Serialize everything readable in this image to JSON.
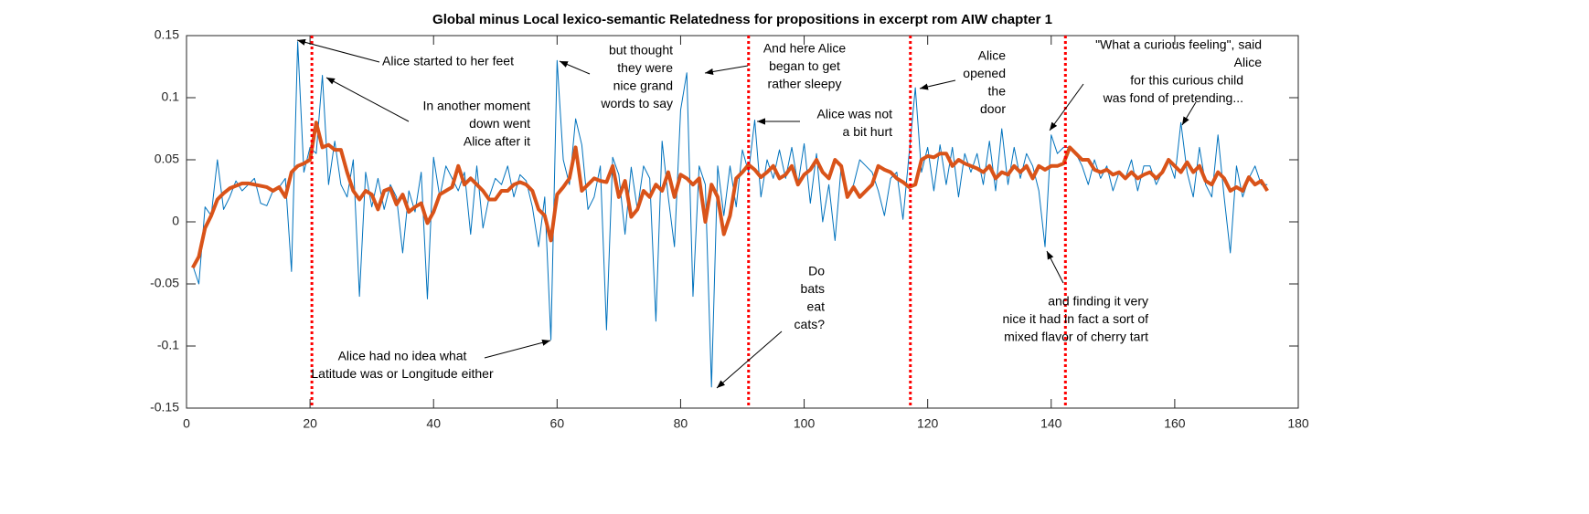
{
  "chart_data": {
    "type": "line",
    "title": "Global minus Local lexico-semantic Relatedness for propositions in excerpt rom AIW chapter 1",
    "x": [
      1,
      2,
      3,
      4,
      5,
      6,
      7,
      8,
      9,
      10,
      11,
      12,
      13,
      14,
      15,
      16,
      17,
      18,
      19,
      20,
      21,
      22,
      23,
      24,
      25,
      26,
      27,
      28,
      29,
      30,
      31,
      32,
      33,
      34,
      35,
      36,
      37,
      38,
      39,
      40,
      41,
      42,
      43,
      44,
      45,
      46,
      47,
      48,
      49,
      50,
      51,
      52,
      53,
      54,
      55,
      56,
      57,
      58,
      59,
      60,
      61,
      62,
      63,
      64,
      65,
      66,
      67,
      68,
      69,
      70,
      71,
      72,
      73,
      74,
      75,
      76,
      77,
      78,
      79,
      80,
      81,
      82,
      83,
      84,
      85,
      86,
      87,
      88,
      89,
      90,
      91,
      92,
      93,
      94,
      95,
      96,
      97,
      98,
      99,
      100,
      101,
      102,
      103,
      104,
      105,
      106,
      107,
      108,
      109,
      110,
      111,
      112,
      113,
      114,
      115,
      116,
      117,
      118,
      119,
      120,
      121,
      122,
      123,
      124,
      125,
      126,
      127,
      128,
      129,
      130,
      131,
      132,
      133,
      134,
      135,
      136,
      137,
      138,
      139,
      140,
      141,
      142,
      143,
      144,
      145,
      146,
      147,
      148,
      149,
      150,
      151,
      152,
      153,
      154,
      155,
      156,
      157,
      158,
      159,
      160,
      161,
      162,
      163,
      164,
      165,
      166,
      167,
      168,
      169,
      170,
      171,
      172,
      173,
      174,
      175
    ],
    "series": [
      {
        "color": "#0072bd",
        "width": 1,
        "values": [
          -0.035,
          -0.05,
          0.012,
          0.005,
          0.05,
          0.01,
          0.02,
          0.033,
          0.025,
          0.03,
          0.035,
          0.015,
          0.013,
          0.025,
          0.028,
          0.035,
          -0.04,
          0.145,
          0.04,
          0.06,
          0.055,
          0.118,
          0.03,
          0.065,
          0.03,
          0.02,
          0.05,
          -0.06,
          0.04,
          0.012,
          0.035,
          0.01,
          0.03,
          0.02,
          -0.025,
          0.025,
          0.008,
          0.04,
          -0.062,
          0.052,
          0.02,
          0.045,
          0.035,
          0.025,
          0.04,
          -0.01,
          0.045,
          -0.005,
          0.02,
          0.035,
          0.03,
          0.045,
          0.02,
          0.038,
          0.033,
          0.012,
          -0.02,
          0.02,
          -0.095,
          0.13,
          0.05,
          0.03,
          0.083,
          0.062,
          0.01,
          0.02,
          0.045,
          -0.087,
          0.052,
          0.038,
          -0.01,
          0.044,
          0.01,
          0.045,
          0.035,
          -0.08,
          0.065,
          0.02,
          -0.02,
          0.09,
          0.12,
          -0.06,
          0.045,
          0.03,
          -0.133,
          0.045,
          0.005,
          0.045,
          0.012,
          0.058,
          0.04,
          0.082,
          0.02,
          0.05,
          0.035,
          0.058,
          0.035,
          0.06,
          0.03,
          0.063,
          0.015,
          0.055,
          0.0,
          0.03,
          -0.015,
          0.045,
          0.02,
          0.03,
          0.05,
          0.045,
          0.04,
          0.025,
          0.005,
          0.035,
          0.04,
          0.002,
          0.055,
          0.108,
          0.04,
          0.06,
          0.025,
          0.062,
          0.03,
          0.06,
          0.02,
          0.055,
          0.04,
          0.055,
          0.03,
          0.065,
          0.025,
          0.075,
          0.03,
          0.06,
          0.035,
          0.055,
          0.045,
          0.025,
          -0.02,
          0.07,
          0.055,
          0.06,
          0.06,
          0.055,
          0.045,
          0.03,
          0.05,
          0.035,
          0.045,
          0.025,
          0.04,
          0.035,
          0.05,
          0.025,
          0.045,
          0.045,
          0.03,
          0.04,
          0.05,
          0.035,
          0.08,
          0.04,
          0.02,
          0.06,
          0.03,
          0.02,
          0.07,
          0.02,
          -0.025,
          0.045,
          0.02,
          0.035,
          0.045,
          0.03,
          0.03
        ]
      },
      {
        "color": "#d95319",
        "width": 4,
        "values": [
          -0.037,
          -0.028,
          -0.005,
          0.005,
          0.018,
          0.023,
          0.027,
          0.029,
          0.031,
          0.031,
          0.03,
          0.029,
          0.028,
          0.025,
          0.028,
          0.02,
          0.04,
          0.045,
          0.047,
          0.05,
          0.08,
          0.06,
          0.062,
          0.058,
          0.058,
          0.04,
          0.025,
          0.018,
          0.025,
          0.022,
          0.01,
          0.025,
          0.027,
          0.014,
          0.022,
          0.008,
          0.012,
          0.015,
          -0.001,
          0.008,
          0.022,
          0.025,
          0.028,
          0.045,
          0.03,
          0.035,
          0.03,
          0.025,
          0.018,
          0.018,
          0.025,
          0.025,
          0.03,
          0.032,
          0.03,
          0.025,
          0.01,
          0.005,
          -0.015,
          0.022,
          0.028,
          0.035,
          0.06,
          0.025,
          0.03,
          0.035,
          0.033,
          0.032,
          0.045,
          0.02,
          0.033,
          0.004,
          0.01,
          0.025,
          0.02,
          0.03,
          0.025,
          0.04,
          0.02,
          0.038,
          0.035,
          0.03,
          0.035,
          0.0,
          0.03,
          0.02,
          -0.01,
          0.005,
          0.035,
          0.04,
          0.046,
          0.042,
          0.036,
          0.04,
          0.045,
          0.035,
          0.038,
          0.045,
          0.03,
          0.038,
          0.042,
          0.05,
          0.04,
          0.035,
          0.05,
          0.045,
          0.02,
          0.028,
          0.02,
          0.025,
          0.03,
          0.045,
          0.042,
          0.04,
          0.035,
          0.032,
          0.028,
          0.03,
          0.05,
          0.053,
          0.052,
          0.055,
          0.055,
          0.045,
          0.05,
          0.047,
          0.045,
          0.043,
          0.04,
          0.045,
          0.035,
          0.04,
          0.038,
          0.045,
          0.04,
          0.045,
          0.035,
          0.045,
          0.042,
          0.045,
          0.045,
          0.047,
          0.06,
          0.055,
          0.05,
          0.05,
          0.042,
          0.04,
          0.042,
          0.038,
          0.04,
          0.035,
          0.04,
          0.035,
          0.038,
          0.04,
          0.035,
          0.04,
          0.05,
          0.045,
          0.04,
          0.048,
          0.04,
          0.045,
          0.033,
          0.03,
          0.04,
          0.035,
          0.025,
          0.028,
          0.025,
          0.036,
          0.03,
          0.033,
          0.025
        ]
      }
    ],
    "vlines": {
      "color": "#ff0000",
      "x": [
        20.3,
        91,
        117.2,
        142.3
      ]
    },
    "xlim": [
      0,
      180
    ],
    "xticks": [
      0,
      20,
      40,
      60,
      80,
      100,
      120,
      140,
      160,
      180
    ],
    "ylim": [
      -0.15,
      0.15
    ],
    "yticks": [
      -0.15,
      -0.1,
      -0.05,
      0,
      0.05,
      0.1,
      0.15
    ],
    "annotations": [
      {
        "lines": [
          "Alice started to her feet"
        ]
      },
      {
        "lines": [
          "In another moment",
          "down went",
          "Alice after it"
        ]
      },
      {
        "lines": [
          "but thought",
          "they were",
          "nice grand",
          "words to say"
        ]
      },
      {
        "lines": [
          "And here Alice",
          "began to get",
          "rather sleepy"
        ]
      },
      {
        "lines": [
          "Alice was not",
          "a bit hurt"
        ]
      },
      {
        "lines": [
          "Alice",
          "opened",
          "the",
          "door"
        ]
      },
      {
        "lines": [
          "\"What a curious feeling\", said",
          "Alice"
        ]
      },
      {
        "lines": [
          "for this curious child",
          "was fond of pretending..."
        ]
      },
      {
        "lines": [
          "and finding it very",
          "nice it had in fact a sort of",
          "mixed flavor of cherry tart"
        ]
      },
      {
        "lines": [
          "Alice had no idea what",
          "Latitude was or Longitude either"
        ]
      },
      {
        "lines": [
          "Do",
          "bats",
          "eat",
          "cats?"
        ]
      }
    ]
  }
}
